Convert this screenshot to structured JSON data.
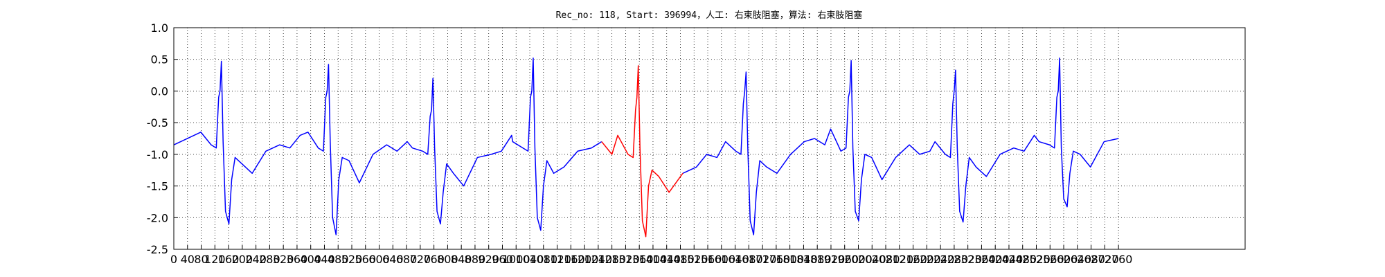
{
  "chart_data": {
    "type": "line",
    "title": "Rec_no: 118, Start: 396994，人工: 右束肢阻塞，算法: 右束肢阻塞",
    "x": [
      0,
      20,
      79,
      109,
      124,
      131,
      135,
      139,
      144,
      151,
      161,
      169,
      179,
      199,
      229,
      269,
      309,
      339,
      369,
      392,
      422,
      437,
      444,
      448,
      452,
      457,
      464,
      474,
      482,
      492,
      512,
      542,
      582,
      622,
      652,
      682,
      697,
      727,
      742,
      749,
      753,
      757,
      762,
      769,
      779,
      787,
      797,
      817,
      847,
      887,
      927,
      957,
      987,
      990,
      1020,
      1035,
      1042,
      1046,
      1050,
      1055,
      1062,
      1072,
      1080,
      1090,
      1110,
      1140,
      1180,
      1220,
      1250,
      1280,
      1297,
      1327,
      1342,
      1349,
      1353,
      1357,
      1362,
      1369,
      1379,
      1387,
      1397,
      1417,
      1447,
      1487,
      1527,
      1557,
      1587,
      1612,
      1642,
      1657,
      1664,
      1668,
      1672,
      1677,
      1684,
      1694,
      1702,
      1712,
      1732,
      1762,
      1802,
      1842,
      1872,
      1902,
      1919,
      1949,
      1964,
      1971,
      1975,
      1979,
      1984,
      1991,
      2001,
      2009,
      2019,
      2039,
      2069,
      2109,
      2149,
      2179,
      2209,
      2224,
      2254,
      2269,
      2276,
      2280,
      2284,
      2289,
      2296,
      2306,
      2314,
      2324,
      2344,
      2374,
      2414,
      2454,
      2484,
      2514,
      2528,
      2558,
      2573,
      2580,
      2584,
      2588,
      2593,
      2600,
      2610,
      2618,
      2628,
      2648,
      2678,
      2718,
      2760
    ],
    "series": [
      {
        "color": "#0000ff",
        "values": [
          -0.85,
          -0.8,
          -0.65,
          -0.85,
          -0.9,
          -0.1,
          0.0,
          0.47,
          -0.8,
          -1.9,
          -2.1,
          -1.4,
          -1.05,
          -1.15,
          -1.3,
          -0.95,
          -0.85,
          -0.9,
          -0.7,
          -0.65,
          -0.9,
          -0.95,
          -0.1,
          0.0,
          0.42,
          -0.8,
          -2.0,
          -2.27,
          -1.4,
          -1.05,
          -1.1,
          -1.45,
          -1.0,
          -0.85,
          -0.95,
          -0.8,
          -0.9,
          -0.95,
          -1.0,
          -0.4,
          -0.3,
          0.2,
          -0.9,
          -1.9,
          -2.1,
          -1.6,
          -1.15,
          -1.3,
          -1.5,
          -1.05,
          -1.0,
          -0.95,
          -0.7,
          -0.8,
          -0.9,
          -0.95,
          -0.1,
          0.0,
          0.52,
          -0.9,
          -2.0,
          -2.2,
          -1.5,
          -1.1,
          -1.3,
          -1.2,
          -0.95,
          -0.9,
          -0.8,
          null,
          null,
          null,
          null,
          null,
          null,
          null,
          null,
          null,
          null,
          null,
          null,
          null,
          null,
          -1.3,
          -1.2,
          -1.0,
          -1.05,
          -0.8,
          -0.95,
          -1.0,
          -0.2,
          0.0,
          0.3,
          -0.9,
          -2.05,
          -2.27,
          -1.6,
          -1.1,
          -1.2,
          -1.3,
          -1.0,
          -0.8,
          -0.75,
          -0.85,
          -0.6,
          -0.95,
          -0.9,
          -0.1,
          0.0,
          0.48,
          -0.9,
          -1.9,
          -2.05,
          -1.4,
          -1.0,
          -1.05,
          -1.4,
          -1.05,
          -0.85,
          -1.0,
          -0.95,
          -0.8,
          -1.0,
          -1.05,
          -0.2,
          0.0,
          0.33,
          -0.9,
          -1.9,
          -2.07,
          -1.5,
          -1.05,
          -1.2,
          -1.35,
          -1.0,
          -0.9,
          -0.95,
          -0.7,
          -0.8,
          -0.85,
          -0.9,
          -0.1,
          0.0,
          0.52,
          -0.9,
          -1.7,
          -1.83,
          -1.3,
          -0.95,
          -1.0,
          -1.2,
          -0.8,
          -0.75
        ]
      },
      {
        "color": "#ff0000",
        "values": [
          null,
          null,
          null,
          null,
          null,
          null,
          null,
          null,
          null,
          null,
          null,
          null,
          null,
          null,
          null,
          null,
          null,
          null,
          null,
          null,
          null,
          null,
          null,
          null,
          null,
          null,
          null,
          null,
          null,
          null,
          null,
          null,
          null,
          null,
          null,
          null,
          null,
          null,
          null,
          null,
          null,
          null,
          null,
          null,
          null,
          null,
          null,
          null,
          null,
          null,
          null,
          null,
          null,
          null,
          null,
          null,
          null,
          null,
          null,
          null,
          null,
          null,
          null,
          null,
          null,
          null,
          null,
          null,
          -0.8,
          -1.0,
          -0.7,
          -1.0,
          -1.05,
          -0.3,
          -0.1,
          0.4,
          -0.9,
          -2.05,
          -2.3,
          -1.5,
          -1.25,
          -1.35,
          -1.6,
          -1.3,
          null,
          null,
          null,
          null,
          null,
          null,
          null,
          null,
          null,
          null,
          null,
          null,
          null,
          null,
          null,
          null,
          null,
          null,
          null,
          null,
          null,
          null,
          null,
          null,
          null,
          null,
          null,
          null,
          null,
          null,
          null,
          null,
          null,
          null,
          null,
          null,
          null,
          null,
          null,
          null,
          null,
          null,
          null,
          null,
          null,
          null,
          null,
          null,
          null,
          null,
          null,
          null,
          null,
          null,
          null,
          null,
          null,
          null,
          null,
          null,
          null,
          null,
          null,
          null,
          null,
          null,
          null,
          null,
          null
        ]
      }
    ],
    "xlim": [
      0,
      3130
    ],
    "xticks": [
      0,
      40,
      80,
      120,
      160,
      200,
      240,
      280,
      320,
      360,
      400,
      440,
      480,
      520,
      560,
      600,
      640,
      680,
      720,
      760,
      800,
      840,
      880,
      920,
      960,
      1000,
      1040,
      1080,
      1120,
      1160,
      1200,
      1240,
      1280,
      1320,
      1360,
      1400,
      1440,
      1480,
      1520,
      1560,
      1600,
      1640,
      1680,
      1720,
      1760,
      1800,
      1840,
      1880,
      1920,
      1960,
      2000,
      2040,
      2080,
      2120,
      2160,
      2200,
      2240,
      2280,
      2320,
      2360,
      2400,
      2440,
      2480,
      2520,
      2560,
      2600,
      2640,
      2680,
      2720,
      2760
    ],
    "ylim": [
      -2.5,
      1.0
    ],
    "yticks": [
      {
        "value": -2.5,
        "label": "-2.5"
      },
      {
        "value": -2.0,
        "label": "-2.0"
      },
      {
        "value": -1.5,
        "label": "-1.5"
      },
      {
        "value": -1.0,
        "label": "-1.0"
      },
      {
        "value": -0.5,
        "label": "-0.5"
      },
      {
        "value": 0.0,
        "label": "0.0"
      },
      {
        "value": 0.5,
        "label": "0.5"
      },
      {
        "value": 1.0,
        "label": "1.0"
      }
    ],
    "grid": true
  }
}
